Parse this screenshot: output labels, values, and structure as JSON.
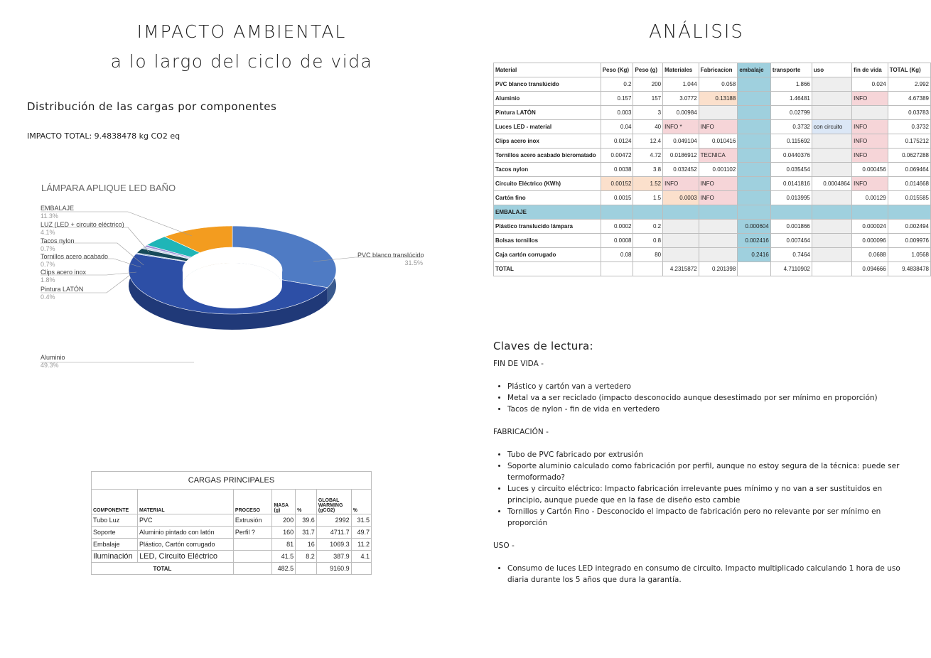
{
  "left": {
    "title_line1": "IMPACTO AMBIENTAL",
    "title_line2": "a lo largo del ciclo de vida",
    "subtitle": "Distribución de las cargas por componentes",
    "impacto_total": "IMPACTO TOTAL: 9.4838478 kg CO2 eq"
  },
  "chart_data": {
    "type": "pie",
    "title": "LÁMPARA APLIQUE LED BAÑO",
    "slices": [
      {
        "name": "PVC blanco translúcido",
        "pct_label": "31.5%",
        "value": 31.5,
        "color": "#4f7bc4"
      },
      {
        "name": "Aluminio",
        "pct_label": "49.3%",
        "value": 49.3,
        "color": "#2d4fa6"
      },
      {
        "name": "Pintura LATÓN",
        "pct_label": "0.4%",
        "value": 0.4,
        "color": "#8fa9d9"
      },
      {
        "name": "Clips acero inox",
        "pct_label": "1.8%",
        "value": 1.8,
        "color": "#164a5a"
      },
      {
        "name": "Tornillos acero acabado",
        "pct_label": "0.7%",
        "value": 0.7,
        "color": "#c7d4ea"
      },
      {
        "name": "Tacos nylon",
        "pct_label": "0.7%",
        "value": 0.7,
        "color": "#9b8fd6"
      },
      {
        "name": "LUZ (LED + circuito eléctrico)",
        "pct_label": "4.1%",
        "value": 4.1,
        "color": "#1fb5b7"
      },
      {
        "name": "EMBALAJE",
        "pct_label": "11.3%",
        "value": 11.3,
        "color": "#f39c1f"
      }
    ]
  },
  "cargas": {
    "caption": "CARGAS PRINCIPALES",
    "headers": [
      "COMPONENTE",
      "MATERIAL",
      "PROCESO",
      "MASA (g)",
      "%",
      "GLOBAL WARMING (gCO2)",
      "%"
    ],
    "rows": [
      [
        "Tubo Luz",
        "PVC",
        "Extrusión",
        "200",
        "39.6",
        "2992",
        "31.5"
      ],
      [
        "Soporte",
        "Aluminio pintado con latón",
        "Perfil ?",
        "160",
        "31.7",
        "4711.7",
        "49.7"
      ],
      [
        "Embalaje",
        "Plástico, Cartón corrugado",
        "",
        "81",
        "16",
        "1069.3",
        "11.2"
      ],
      [
        "Iluminación",
        "LED, Circuito Eléctrico",
        "",
        "41.5",
        "8.2",
        "387.9",
        "4.1"
      ]
    ],
    "total": [
      "TOTAL",
      "",
      "482.5",
      "",
      "9160.9",
      ""
    ]
  },
  "right": {
    "title": "ANÁLISIS",
    "table_headers": [
      "Material",
      "Peso (Kg)",
      "Peso (g)",
      "Materiales",
      "Fabricacion",
      "embalaje",
      "transporte",
      "uso",
      "fin de vida",
      "TOTAL (Kg)"
    ],
    "rows": [
      {
        "cells": [
          "PVC blanco translúcido",
          "0.2",
          "200",
          "1.044",
          "0.058",
          "",
          "1.866",
          "",
          "0.024",
          "2.992"
        ],
        "styles": [
          "",
          "",
          "",
          "",
          "",
          "emb",
          "",
          "grey",
          "",
          ""
        ]
      },
      {
        "cells": [
          "Aluminio",
          "0.157",
          "157",
          "3.0772",
          "0.13188",
          "",
          "1.46481",
          "",
          "INFO",
          "4.67389"
        ],
        "styles": [
          "",
          "",
          "",
          "",
          "peach",
          "emb",
          "",
          "grey",
          "pink",
          ""
        ]
      },
      {
        "cells": [
          "Pintura LATÓN",
          "0.003",
          "3",
          "0.00984",
          "",
          "",
          "0.02799",
          "",
          "",
          "0.03783"
        ],
        "styles": [
          "",
          "",
          "",
          "",
          "grey",
          "emb",
          "",
          "grey",
          "grey",
          ""
        ]
      },
      {
        "cells": [
          "Luces LED - material",
          "0.04",
          "40",
          "INFO *",
          "INFO",
          "",
          "0.3732",
          "con circuito",
          "INFO",
          "0.3732"
        ],
        "styles": [
          "",
          "",
          "",
          "pink",
          "pink",
          "emb",
          "",
          "blue",
          "pink",
          ""
        ]
      },
      {
        "cells": [
          "Clips acero inox",
          "0.0124",
          "12.4",
          "0.049104",
          "0.010416",
          "",
          "0.115692",
          "",
          "INFO",
          "0.175212"
        ],
        "styles": [
          "",
          "",
          "",
          "",
          "",
          "emb",
          "",
          "grey",
          "pink",
          ""
        ]
      },
      {
        "cells": [
          "Tornillos acero acabado bicromatado",
          "0.00472",
          "4.72",
          "0.0186912",
          "TECNICA",
          "",
          "0.0440376",
          "",
          "INFO",
          "0.0627288"
        ],
        "styles": [
          "",
          "",
          "",
          "",
          "pink",
          "emb",
          "",
          "grey",
          "pink",
          ""
        ]
      },
      {
        "cells": [
          "Tacos nylon",
          "0.0038",
          "3.8",
          "0.032452",
          "0.001102",
          "",
          "0.035454",
          "",
          "0.000456",
          "0.069464"
        ],
        "styles": [
          "",
          "",
          "",
          "",
          "",
          "emb",
          "",
          "grey",
          "",
          ""
        ]
      },
      {
        "cells": [
          "Circuito Eléctrico (KWh)",
          "0.00152",
          "1.52",
          "INFO",
          "INFO",
          "",
          "0.0141816",
          "0.0004864",
          "INFO",
          "0.014668"
        ],
        "styles": [
          "",
          "peach",
          "peach",
          "pink",
          "pink",
          "emb",
          "",
          "",
          "pink",
          ""
        ]
      },
      {
        "cells": [
          "Cartón fino",
          "0.0015",
          "1.5",
          "0.0003",
          "INFO",
          "",
          "0.013995",
          "",
          "0.00129",
          "0.015585"
        ],
        "styles": [
          "",
          "",
          "",
          "peach",
          "pink",
          "emb",
          "",
          "grey",
          "",
          ""
        ]
      },
      {
        "cells": [
          "EMBALAJE",
          "",
          "",
          "",
          "",
          "",
          "",
          "",
          "",
          ""
        ],
        "styles": [
          "embrow"
        ]
      },
      {
        "cells": [
          "Plástico translucido lámpara",
          "0.0002",
          "0.2",
          "",
          "",
          "0.000604",
          "0.001866",
          "",
          "0.000024",
          "0.002494"
        ],
        "styles": [
          "",
          "",
          "",
          "grey",
          "grey",
          "emb",
          "",
          "grey",
          "",
          ""
        ]
      },
      {
        "cells": [
          "Bolsas tornillos",
          "0.0008",
          "0.8",
          "",
          "",
          "0.002416",
          "0.007464",
          "",
          "0.000096",
          "0.009976"
        ],
        "styles": [
          "",
          "",
          "",
          "grey",
          "grey",
          "emb",
          "",
          "grey",
          "",
          ""
        ]
      },
      {
        "cells": [
          "Caja cartón corrugado",
          "0.08",
          "80",
          "",
          "",
          "0.2416",
          "0.7464",
          "",
          "0.0688",
          "1.0568"
        ],
        "styles": [
          "",
          "",
          "",
          "grey",
          "grey",
          "emb",
          "",
          "grey",
          "",
          ""
        ]
      },
      {
        "cells": [
          "TOTAL",
          "",
          "",
          "4.2315872",
          "0.201398",
          "",
          "4.7110902",
          "",
          "0.094666",
          "9.4838478"
        ],
        "styles": [
          "",
          "",
          "",
          "",
          "",
          "",
          "",
          "",
          "",
          ""
        ]
      }
    ]
  },
  "claves": {
    "title": "Claves de lectura:",
    "sections": [
      {
        "heading": "FIN DE VIDA -",
        "items": [
          "Plástico y cartón van a vertedero",
          "Metal va a ser reciclado (impacto desconocido aunque desestimado por ser mínimo en proporción)",
          "Tacos de nylon - fin de vida en vertedero"
        ]
      },
      {
        "heading": "FABRICACIÓN -",
        "items": [
          "Tubo de PVC fabricado por extrusión",
          "Soporte aluminio calculado como fabricación por perfil, aunque no estoy segura de la técnica: puede ser termoformado?",
          "Luces y circuito eléctrico: Impacto fabricación irrelevante pues mínimo y no van a ser sustituidos en principio, aunque puede que en la fase de diseño esto cambie",
          "Tornillos y Cartón Fino - Desconocido el impacto de fabricación pero no relevante por ser mínimo en proporción"
        ]
      },
      {
        "heading": "USO -",
        "items": [
          "Consumo de luces LED integrado en consumo de circuito. Impacto multiplicado calculando 1 hora de uso diaria durante los 5 años que dura la garantía."
        ]
      }
    ]
  }
}
